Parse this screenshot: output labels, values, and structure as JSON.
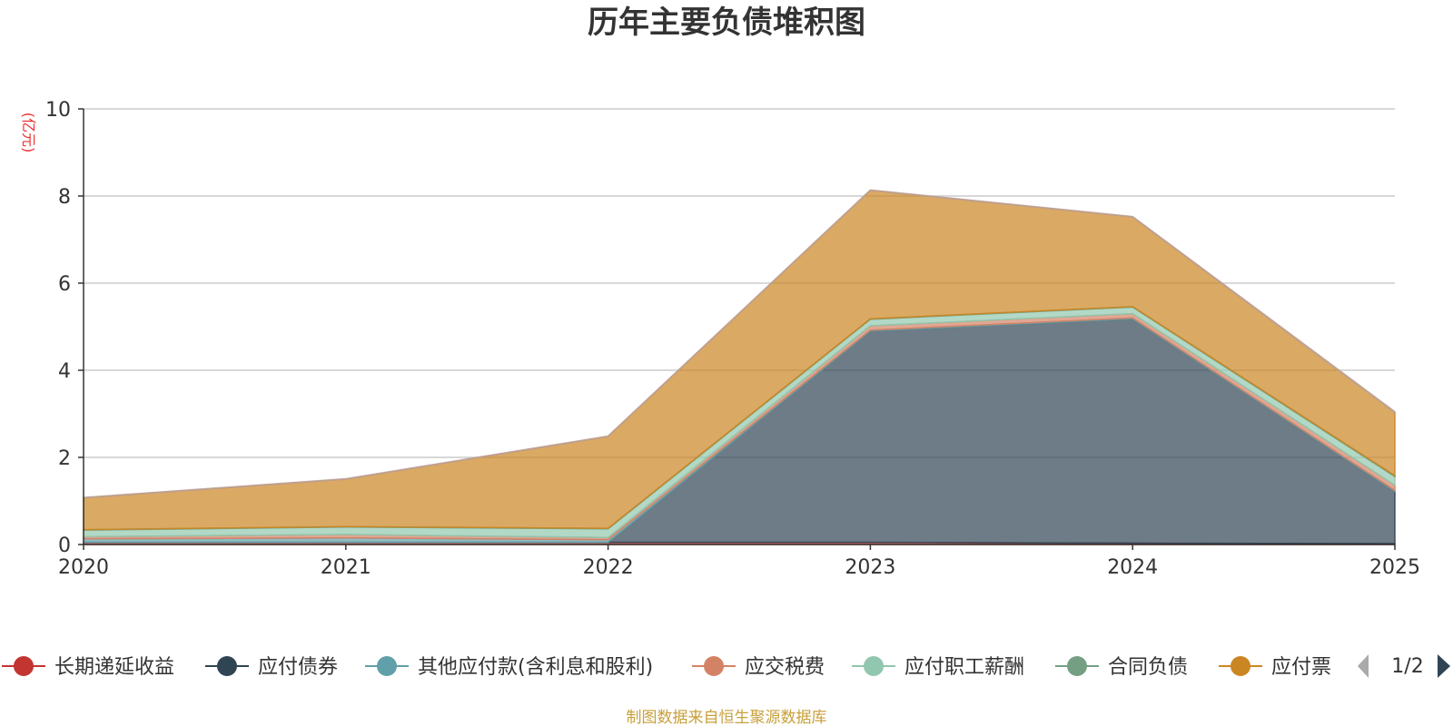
{
  "chart_data": {
    "type": "area",
    "stacked": true,
    "title": "历年主要负债堆积图",
    "ylabel": "(亿元)",
    "xlabel": "",
    "x": [
      "2020",
      "2021",
      "2022",
      "2023",
      "2024",
      "2025"
    ],
    "ylim": [
      0,
      10
    ],
    "yticks": [
      0,
      2,
      4,
      6,
      8,
      10
    ],
    "grid": true,
    "series": [
      {
        "name": "长期递延收益",
        "color": "#c23531",
        "values": [
          0.05,
          0.05,
          0.05,
          0.05,
          0.03,
          0.02
        ]
      },
      {
        "name": "应付债券",
        "color": "#2f4554",
        "values": [
          0,
          0,
          0,
          4.85,
          5.15,
          1.2
        ]
      },
      {
        "name": "其他应付款(含利息和股利)",
        "color": "#61a0a8",
        "values": [
          0.08,
          0.1,
          0.06,
          0.02,
          0.02,
          0.02
        ]
      },
      {
        "name": "应交税费",
        "color": "#d48265",
        "values": [
          0.05,
          0.08,
          0.05,
          0.1,
          0.1,
          0.12
        ]
      },
      {
        "name": "应付职工薪酬",
        "color": "#91c7ae",
        "values": [
          0.15,
          0.17,
          0.2,
          0.15,
          0.15,
          0.2
        ]
      },
      {
        "name": "合同负债",
        "color": "#749f83",
        "values": [
          0.01,
          0.01,
          0.01,
          0.01,
          0.01,
          0.02
        ]
      },
      {
        "name": "应付票据",
        "color": "#ca8622",
        "values": [
          0.73,
          1.09,
          2.11,
          2.95,
          2.06,
          1.45
        ]
      },
      {
        "name": "",
        "color": "#bda29a",
        "values": [
          0.01,
          0.01,
          0.01,
          0.01,
          0.01,
          0.02
        ]
      }
    ],
    "legend": {
      "placement": "bottom",
      "visible_items": [
        "长期递延收益",
        "应付债券",
        "其他应付款(含利息和股利)",
        "应交税费",
        "应付职工薪酬",
        "合同负债",
        "应付票"
      ],
      "page": "1/2"
    },
    "source_note": "制图数据来自恒生聚源数据库"
  }
}
